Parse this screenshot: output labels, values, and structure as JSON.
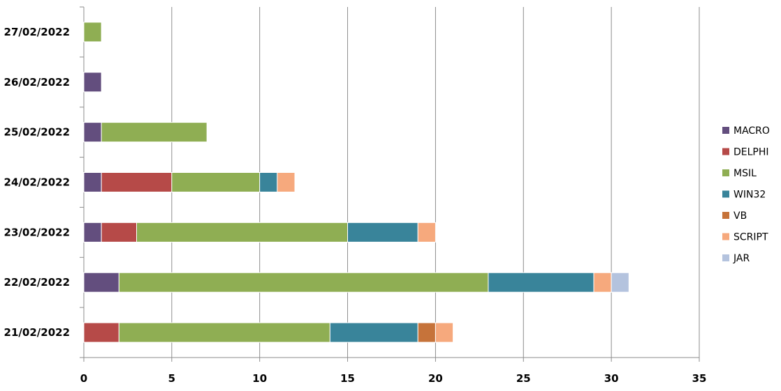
{
  "chart_data": {
    "type": "bar",
    "orientation": "horizontal",
    "stacked": true,
    "categories": [
      "27/02/2022",
      "26/02/2022",
      "25/02/2022",
      "24/02/2022",
      "23/02/2022",
      "22/02/2022",
      "21/02/2022"
    ],
    "series": [
      {
        "name": "MACRO",
        "color": "#634E7E",
        "values": [
          0,
          1,
          1,
          1,
          1,
          2,
          0
        ]
      },
      {
        "name": "DELPHI",
        "color": "#B64A48",
        "values": [
          0,
          0,
          0,
          4,
          2,
          0,
          2
        ]
      },
      {
        "name": "MSIL",
        "color": "#8FAE53",
        "values": [
          1,
          0,
          6,
          5,
          12,
          21,
          12
        ]
      },
      {
        "name": "WIN32",
        "color": "#39849A",
        "values": [
          0,
          0,
          0,
          1,
          4,
          6,
          5
        ]
      },
      {
        "name": "VB",
        "color": "#C6733A",
        "values": [
          0,
          0,
          0,
          0,
          0,
          0,
          1
        ]
      },
      {
        "name": "SCRIPT",
        "color": "#F6A97D",
        "values": [
          0,
          0,
          0,
          1,
          1,
          1,
          1
        ]
      },
      {
        "name": "JAR",
        "color": "#B4C3DE",
        "values": [
          0,
          0,
          0,
          0,
          0,
          1,
          0
        ]
      }
    ],
    "xlim": [
      0,
      35
    ],
    "xticks": [
      "0",
      "5",
      "10",
      "15",
      "20",
      "25",
      "30",
      "35"
    ],
    "grid": true,
    "legend_position": "right"
  }
}
